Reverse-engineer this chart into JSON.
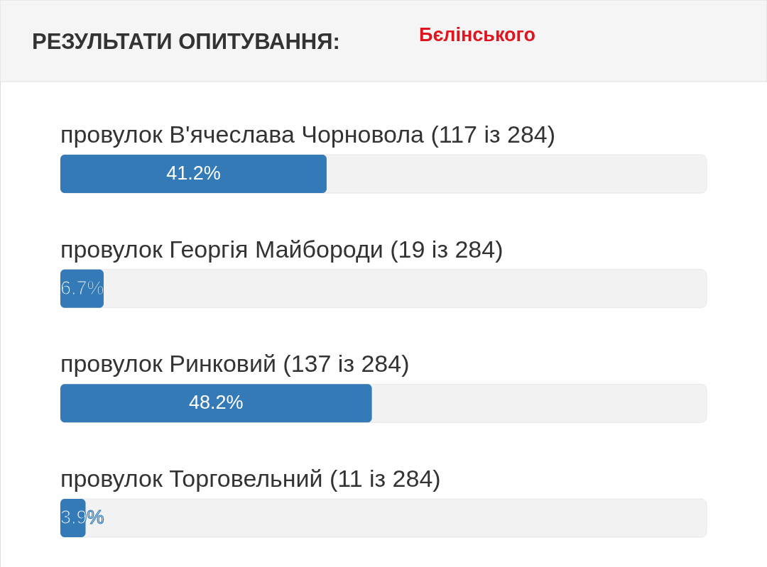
{
  "chart_data": {
    "type": "bar",
    "orientation": "horizontal",
    "title": "РЕЗУЛЬТАТИ ОПИТУВАННЯ:",
    "subtitle": "Бєлінського",
    "categories": [
      "провулок В'ячеслава Чорновола (117 із 284)",
      "провулок Георгія Майбороди (19 із 284)",
      "провулок Ринковий (137 із 284)",
      "провулок Торговельний (11 із 284)"
    ],
    "values": [
      41.2,
      6.7,
      48.2,
      3.9
    ],
    "value_labels": [
      "41.2%",
      "6.7%",
      "48.2%",
      "3.9%"
    ],
    "color": "#337ab7",
    "xlim": [
      0,
      100
    ]
  }
}
